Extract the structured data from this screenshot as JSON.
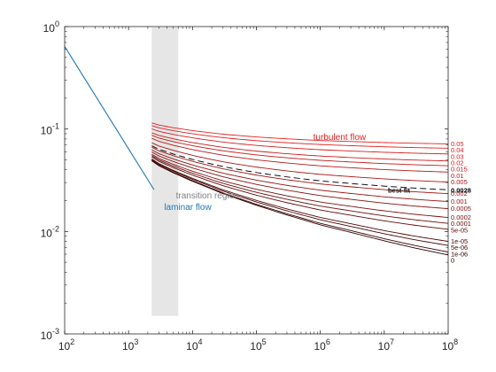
{
  "chart_data": {
    "type": "line",
    "x_scale": "log",
    "y_scale": "log",
    "xlim": [
      100,
      100000000
    ],
    "ylim": [
      0.001,
      1
    ],
    "grid": false,
    "x_ticks": [
      {
        "value": 100,
        "base": "10",
        "exp": "2"
      },
      {
        "value": 1000,
        "base": "10",
        "exp": "3"
      },
      {
        "value": 10000,
        "base": "10",
        "exp": "4"
      },
      {
        "value": 100000,
        "base": "10",
        "exp": "5"
      },
      {
        "value": 1000000,
        "base": "10",
        "exp": "6"
      },
      {
        "value": 10000000,
        "base": "10",
        "exp": "7"
      },
      {
        "value": 100000000,
        "base": "10",
        "exp": "8"
      }
    ],
    "y_ticks": [
      {
        "value": 0.001,
        "base": "10",
        "exp": "-3"
      },
      {
        "value": 0.01,
        "base": "10",
        "exp": "-2"
      },
      {
        "value": 0.1,
        "base": "10",
        "exp": "-1"
      },
      {
        "value": 1,
        "base": "10",
        "exp": "0"
      }
    ],
    "transition_band": {
      "x_range": [
        2300,
        6000
      ],
      "y_range": [
        0.0015,
        1
      ],
      "color": "#e6e6e6"
    },
    "laminar": {
      "x": [
        100,
        2500
      ],
      "y": [
        0.64,
        0.0256
      ],
      "color": "#1f77b4"
    },
    "smooth_series": [
      {
        "x": 2300,
        "y": 0.049
      },
      {
        "x": 3000,
        "y": 0.0437
      },
      {
        "x": 5000,
        "y": 0.0374
      },
      {
        "x": 10000,
        "y": 0.0309
      },
      {
        "x": 30000,
        "y": 0.0234
      },
      {
        "x": 100000,
        "y": 0.018
      },
      {
        "x": 300000,
        "y": 0.0145
      },
      {
        "x": 1000000,
        "y": 0.0116
      },
      {
        "x": 3000000,
        "y": 0.0098
      },
      {
        "x": 10000000,
        "y": 0.0081
      },
      {
        "x": 30000000,
        "y": 0.0069
      },
      {
        "x": 100000000,
        "y": 0.0059
      }
    ],
    "roughness_series": [
      {
        "label": "0.05",
        "f_inf": 0.0716
      },
      {
        "label": "0.04",
        "f_inf": 0.0649
      },
      {
        "label": "0.03",
        "f_inf": 0.0571
      },
      {
        "label": "0.02",
        "f_inf": 0.0488
      },
      {
        "label": "0.015",
        "f_inf": 0.0438
      },
      {
        "label": "0.01",
        "f_inf": 0.038
      },
      {
        "label": "0.005",
        "f_inf": 0.0304
      },
      {
        "label": "0.002",
        "f_inf": 0.0234
      },
      {
        "label": "0.001",
        "f_inf": 0.0196
      },
      {
        "label": "0.0005",
        "f_inf": 0.0167
      },
      {
        "label": "0.0002",
        "f_inf": 0.0137
      },
      {
        "label": "0.0001",
        "f_inf": 0.012
      },
      {
        "label": "5e-05",
        "f_inf": 0.0105
      },
      {
        "label": "1e-05",
        "f_inf": 0.008
      },
      {
        "label": "5e-06",
        "f_inf": 0.0073
      },
      {
        "label": "1e-06",
        "f_inf": 0.0063
      },
      {
        "label": "0",
        "f_inf": 0.0059
      }
    ],
    "best_fit": {
      "label": "best-fit",
      "value_label": "0.0028",
      "f_inf": 0.0255,
      "x_start": 2300
    },
    "annotations": {
      "turbulent": "turbulent flow",
      "transition": "transition region",
      "laminar": "laminar flow"
    },
    "colors": {
      "red": "#e8211f",
      "dark": "#2a0000",
      "laminar": "#1f77b4",
      "transition_text": "#808080",
      "band": "#e6e6e6"
    }
  }
}
